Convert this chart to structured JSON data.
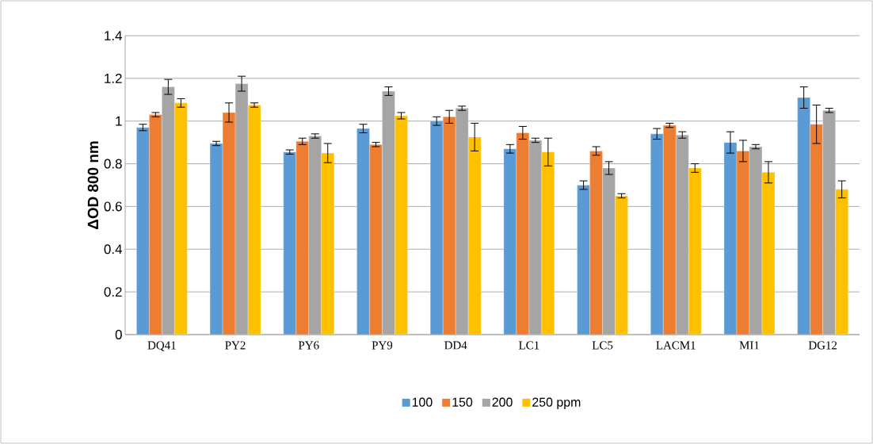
{
  "chart_data": {
    "type": "bar",
    "ylabel": "ΔOD 800 nm",
    "categories": [
      "DQ41",
      "PY2",
      "PY6",
      "PY9",
      "DD4",
      "LC1",
      "LC5",
      "LACM1",
      "MI1",
      "DG12"
    ],
    "series": [
      {
        "name": "100",
        "color": "#5b9bd5",
        "values": [
          0.97,
          0.895,
          0.855,
          0.965,
          1.0,
          0.87,
          0.7,
          0.94,
          0.9,
          1.11
        ],
        "errors": [
          0.015,
          0.01,
          0.01,
          0.02,
          0.02,
          0.02,
          0.02,
          0.025,
          0.05,
          0.05
        ]
      },
      {
        "name": "150",
        "color": "#ed7d31",
        "values": [
          1.03,
          1.04,
          0.905,
          0.89,
          1.02,
          0.945,
          0.86,
          0.98,
          0.86,
          0.985
        ],
        "errors": [
          0.01,
          0.045,
          0.015,
          0.01,
          0.03,
          0.03,
          0.02,
          0.01,
          0.05,
          0.09
        ]
      },
      {
        "name": "200",
        "color": "#a5a5a5",
        "values": [
          1.16,
          1.175,
          0.93,
          1.14,
          1.06,
          0.91,
          0.78,
          0.935,
          0.88,
          1.05
        ],
        "errors": [
          0.035,
          0.035,
          0.01,
          0.02,
          0.01,
          0.01,
          0.03,
          0.015,
          0.01,
          0.01
        ]
      },
      {
        "name": "250 ppm",
        "color": "#ffc000",
        "values": [
          1.085,
          1.075,
          0.85,
          1.025,
          0.925,
          0.855,
          0.65,
          0.78,
          0.76,
          0.68
        ],
        "errors": [
          0.02,
          0.01,
          0.045,
          0.015,
          0.065,
          0.065,
          0.01,
          0.02,
          0.05,
          0.04
        ]
      }
    ],
    "ylim": [
      0,
      1.4
    ],
    "yticks": [
      0,
      0.2,
      0.4,
      0.6,
      0.8,
      1,
      1.2,
      1.4
    ],
    "grid": "y",
    "legend": "bottom"
  }
}
